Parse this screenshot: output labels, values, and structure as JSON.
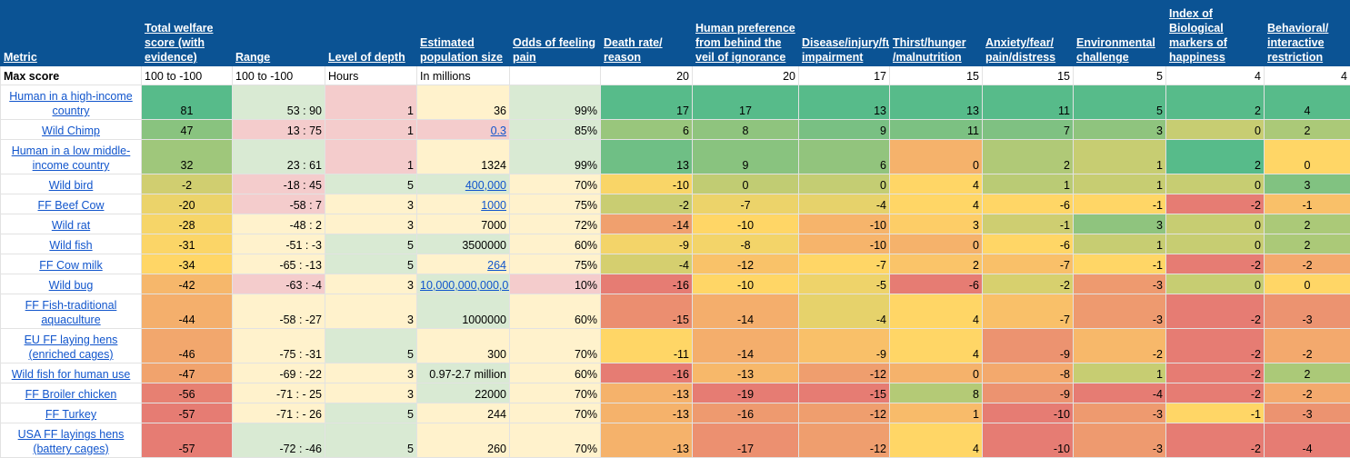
{
  "colors": {
    "header_bg": "#0b5394",
    "heat_low": "#e67c73",
    "heat_mid": "#ffd666",
    "heat_high": "#57bb8a",
    "tint_r": "#f4cccc",
    "tint_y": "#fff2cc",
    "tint_g": "#d9ead3",
    "link": "#1155cc"
  },
  "headers": [
    "Metric",
    "Total welfare score (with evidence)",
    "Range",
    "Level of depth",
    "Estimated population size",
    "Odds of feeling pain",
    "Death rate/ reason",
    "Human preference from behind the veil of ignorance",
    "Disease/injury/functional impairment",
    "Thirst/hunger /malnutrition",
    "Anxiety/fear/ pain/distress",
    "Environmental challenge",
    "Index of Biological markers of happiness",
    "Behavioral/ interactive restriction"
  ],
  "max_row": [
    "Max score",
    "100 to -100",
    "100 to -100",
    "Hours",
    "In millions",
    "",
    "20",
    "20",
    "17",
    "15",
    "15",
    "5",
    "4",
    "4"
  ],
  "rows": [
    {
      "name": "Human in a high-income country",
      "tall": true,
      "total": 81,
      "range": "53 : 90",
      "range_t": "g",
      "depth": "1",
      "depth_t": "r",
      "pop": "36",
      "pop_t": "y",
      "pop_link": false,
      "odds": "99%",
      "odds_t": "g",
      "scores": [
        17,
        17,
        13,
        13,
        11,
        5,
        2,
        4
      ]
    },
    {
      "name": "Wild Chimp",
      "tall": false,
      "total": 47,
      "range": "13 : 75",
      "range_t": "r",
      "depth": "1",
      "depth_t": "r",
      "pop": "0.3",
      "pop_t": "r",
      "pop_link": true,
      "odds": "85%",
      "odds_t": "g",
      "scores": [
        6,
        8,
        9,
        11,
        7,
        3,
        0,
        2
      ]
    },
    {
      "name": "Human in a low middle-income country",
      "tall": true,
      "total": 32,
      "range": "23 : 61",
      "range_t": "g",
      "depth": "1",
      "depth_t": "r",
      "pop": "1324",
      "pop_t": "y",
      "pop_link": false,
      "odds": "99%",
      "odds_t": "g",
      "scores": [
        13,
        9,
        6,
        0,
        2,
        1,
        2,
        0
      ]
    },
    {
      "name": "Wild bird",
      "tall": false,
      "total": -2,
      "range": "-18 : 45",
      "range_t": "r",
      "depth": "5",
      "depth_t": "g",
      "pop": "400,000",
      "pop_t": "g",
      "pop_link": true,
      "odds": "70%",
      "odds_t": "y",
      "scores": [
        -10,
        0,
        0,
        4,
        1,
        1,
        0,
        3
      ]
    },
    {
      "name": "FF Beef Cow",
      "tall": false,
      "total": -20,
      "range": "-58 : 7",
      "range_t": "r",
      "depth": "3",
      "depth_t": "y",
      "pop": "1000",
      "pop_t": "y",
      "pop_link": true,
      "odds": "75%",
      "odds_t": "y",
      "scores": [
        -2,
        -7,
        -4,
        4,
        -6,
        -1,
        -2,
        -1
      ]
    },
    {
      "name": "Wild rat",
      "tall": false,
      "total": -28,
      "range": "-48 : 2",
      "range_t": "y",
      "depth": "3",
      "depth_t": "y",
      "pop": "7000",
      "pop_t": "y",
      "pop_link": false,
      "odds": "72%",
      "odds_t": "y",
      "scores": [
        -14,
        -10,
        -10,
        3,
        -1,
        3,
        0,
        2
      ]
    },
    {
      "name": "Wild fish",
      "tall": false,
      "total": -31,
      "range": "-51 : -3",
      "range_t": "y",
      "depth": "5",
      "depth_t": "g",
      "pop": "3500000",
      "pop_t": "g",
      "pop_link": false,
      "odds": "60%",
      "odds_t": "y",
      "scores": [
        -9,
        -8,
        -10,
        0,
        -6,
        1,
        0,
        2
      ]
    },
    {
      "name": "FF Cow milk",
      "tall": false,
      "total": -34,
      "range": "-65 : -13",
      "range_t": "y",
      "depth": "5",
      "depth_t": "g",
      "pop": "264",
      "pop_t": "y",
      "pop_link": true,
      "odds": "75%",
      "odds_t": "y",
      "scores": [
        -4,
        -12,
        -7,
        2,
        -7,
        -1,
        -2,
        -2
      ]
    },
    {
      "name": "Wild bug",
      "tall": false,
      "total": -42,
      "range": "-63 : -4",
      "range_t": "r",
      "depth": "3",
      "depth_t": "y",
      "pop": "10,000,000,000,000",
      "pop_t": "g",
      "pop_link": true,
      "odds": "10%",
      "odds_t": "r",
      "scores": [
        -16,
        -10,
        -5,
        -6,
        -2,
        -3,
        0,
        0
      ]
    },
    {
      "name": "FF Fish-traditional aquaculture",
      "tall": true,
      "total": -44,
      "range": "-58 : -27",
      "range_t": "y",
      "depth": "3",
      "depth_t": "y",
      "pop": "1000000",
      "pop_t": "g",
      "pop_link": false,
      "odds": "60%",
      "odds_t": "y",
      "scores": [
        -15,
        -14,
        -4,
        4,
        -7,
        -3,
        -2,
        -3
      ]
    },
    {
      "name": "EU FF laying hens (enriched cages)",
      "tall": true,
      "total": -46,
      "range": "-75 : -31",
      "range_t": "y",
      "depth": "5",
      "depth_t": "g",
      "pop": "300",
      "pop_t": "y",
      "pop_link": false,
      "odds": "70%",
      "odds_t": "y",
      "scores": [
        -11,
        -14,
        -9,
        4,
        -9,
        -2,
        -2,
        -2
      ]
    },
    {
      "name": "Wild fish for human use",
      "tall": false,
      "total": -47,
      "range": "-69 : -22",
      "range_t": "y",
      "depth": "3",
      "depth_t": "y",
      "pop": "0.97-2.7 million",
      "pop_t": "g",
      "pop_link": false,
      "odds": "60%",
      "odds_t": "y",
      "scores": [
        -16,
        -13,
        -12,
        0,
        -8,
        1,
        -2,
        2
      ]
    },
    {
      "name": "FF Broiler chicken",
      "tall": false,
      "total": -56,
      "range": "-71 : - 25",
      "range_t": "y",
      "depth": "3",
      "depth_t": "y",
      "pop": "22000",
      "pop_t": "g",
      "pop_link": false,
      "odds": "70%",
      "odds_t": "y",
      "scores": [
        -13,
        -19,
        -15,
        8,
        -9,
        -4,
        -2,
        -2
      ]
    },
    {
      "name": "FF Turkey",
      "tall": false,
      "total": -57,
      "range": "-71 : - 26",
      "range_t": "y",
      "depth": "5",
      "depth_t": "g",
      "pop": "244",
      "pop_t": "y",
      "pop_link": false,
      "odds": "70%",
      "odds_t": "y",
      "scores": [
        -13,
        -16,
        -12,
        1,
        -10,
        -3,
        -1,
        -3
      ]
    },
    {
      "name": "USA FF layings hens (battery cages)",
      "tall": true,
      "total": -57,
      "range": "-72 : -46",
      "range_t": "g",
      "depth": "5",
      "depth_t": "g",
      "pop": "260",
      "pop_t": "y",
      "pop_link": false,
      "odds": "70%",
      "odds_t": "y",
      "scores": [
        -13,
        -17,
        -12,
        4,
        -10,
        -3,
        -2,
        -4
      ]
    }
  ]
}
